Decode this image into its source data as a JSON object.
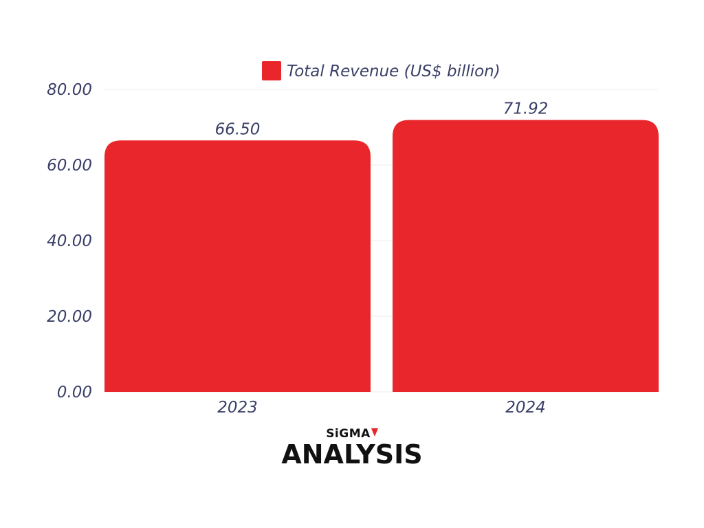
{
  "chart_data": {
    "type": "bar",
    "categories": [
      "2023",
      "2024"
    ],
    "series": [
      {
        "name": "Total Revenue (US$ billion)",
        "values": [
          66.5,
          71.92
        ],
        "color": "#e8262b"
      }
    ],
    "data_labels": [
      "66.50",
      "71.92"
    ],
    "ylim": [
      0,
      80
    ],
    "yticks": [
      "0.00",
      "20.00",
      "40.00",
      "60.00",
      "80.00"
    ],
    "ytick_values": [
      0,
      20,
      40,
      60,
      80
    ],
    "grid": true,
    "legend_position": "top-center"
  },
  "logo": {
    "top_text": "SiGMA",
    "bottom_text": "ANALYSIS",
    "accent_color": "#e8262b"
  }
}
